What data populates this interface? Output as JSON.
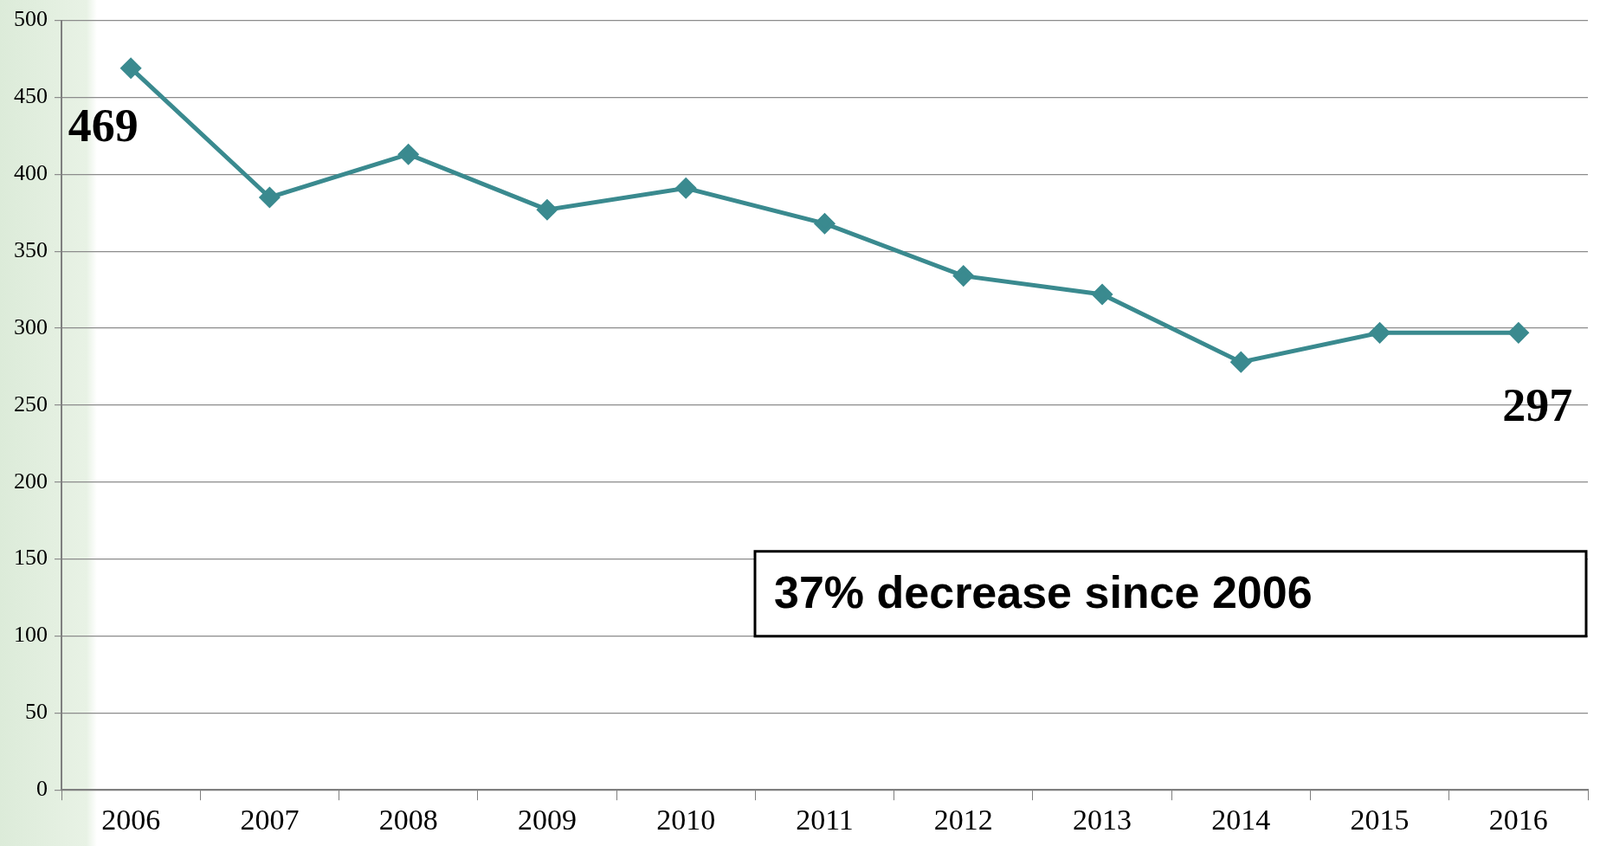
{
  "chart_data": {
    "type": "line",
    "categories": [
      "2006",
      "2007",
      "2008",
      "2009",
      "2010",
      "2011",
      "2012",
      "2013",
      "2014",
      "2015",
      "2016"
    ],
    "values": [
      469,
      385,
      413,
      377,
      391,
      368,
      334,
      322,
      278,
      297,
      297
    ],
    "color": "#3a8a8f",
    "marker": "diamond",
    "line_style": "solid",
    "ylim": [
      0,
      500
    ],
    "yticks": [
      0,
      50,
      100,
      150,
      200,
      250,
      300,
      350,
      400,
      450,
      500
    ],
    "grid": true,
    "annotations": [
      "469",
      "297",
      "37% decrease since 2006"
    ]
  }
}
